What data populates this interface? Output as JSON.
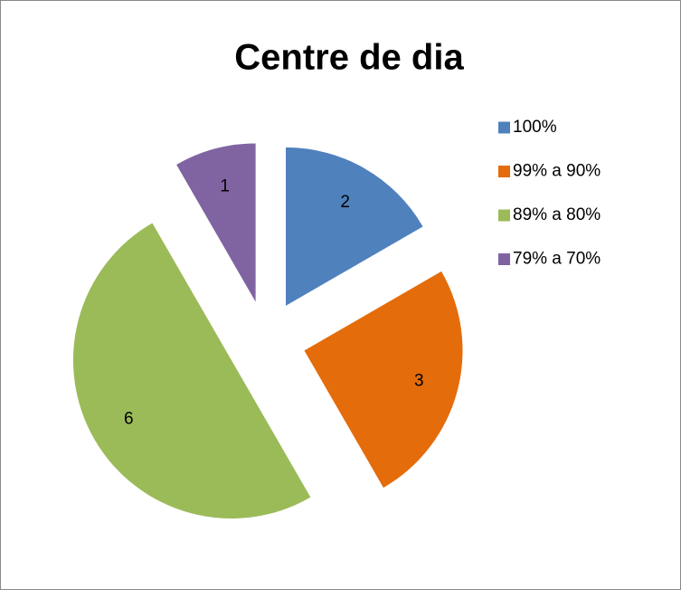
{
  "chart_data": {
    "type": "pie",
    "title": "Centre de dia",
    "categories": [
      "100%",
      "99% a 90%",
      "89% a 80%",
      "79% a 70%"
    ],
    "values": [
      2,
      3,
      6,
      1
    ],
    "colors": [
      "#4f81bd",
      "#e46c0a",
      "#9bbb59",
      "#8064a2"
    ],
    "legend": "right"
  }
}
